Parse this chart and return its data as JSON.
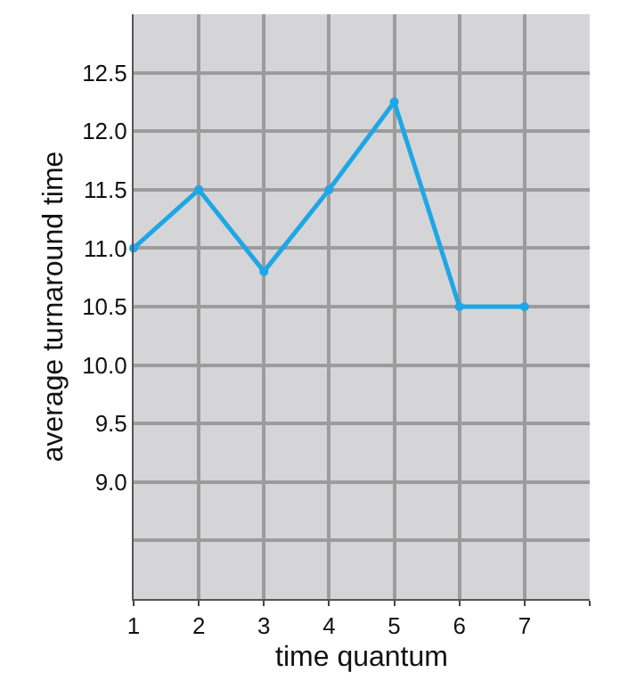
{
  "chart_data": {
    "type": "line",
    "xlabel": "time quantum",
    "ylabel": "average turnaround time",
    "x": [
      1,
      2,
      3,
      4,
      5,
      6,
      7
    ],
    "series": [
      {
        "color": "#1ea7e6",
        "values": [
          11.0,
          11.5,
          10.8,
          11.5,
          12.25,
          10.5,
          10.5
        ]
      }
    ],
    "xlim": [
      1,
      8
    ],
    "xticks": [
      1,
      2,
      3,
      4,
      5,
      6,
      7,
      {
        "value": 8,
        "label": null
      }
    ],
    "ylim": [
      8,
      13
    ],
    "yticks": [
      {
        "value": 8,
        "label": null
      },
      {
        "value": 8.5,
        "label": null
      },
      {
        "value": 9,
        "label": "9.0"
      },
      {
        "value": 9.5,
        "label": "9.5"
      },
      {
        "value": 10,
        "label": "10.0"
      },
      {
        "value": 10.5,
        "label": "10.5"
      },
      {
        "value": 11,
        "label": "11.0"
      },
      {
        "value": 11.5,
        "label": "11.5"
      },
      {
        "value": 12,
        "label": "12.0"
      },
      {
        "value": 12.5,
        "label": "12.5"
      },
      {
        "value": 13,
        "label": null
      }
    ],
    "grid": true,
    "marker": "circle",
    "line_style": "solid"
  }
}
